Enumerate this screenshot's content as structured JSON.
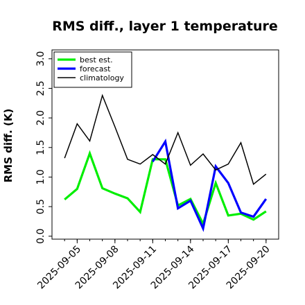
{
  "chart_data": {
    "type": "line",
    "title": "RMS diff., layer 1 temperature",
    "ylabel": "RMS diff. (K)",
    "xlabel": "",
    "x_dates": [
      "2025-09-04",
      "2025-09-05",
      "2025-09-06",
      "2025-09-07",
      "2025-09-08",
      "2025-09-09",
      "2025-09-10",
      "2025-09-11",
      "2025-09-12",
      "2025-09-13",
      "2025-09-14",
      "2025-09-15",
      "2025-09-16",
      "2025-09-17",
      "2025-09-18",
      "2025-09-19",
      "2025-09-20"
    ],
    "x_tick_labels": [
      {
        "date": "2025-09-05",
        "label": "2025-09-05",
        "color": "#000000"
      },
      {
        "date": "2025-09-08",
        "label": "2025-09-08",
        "color": "#000000"
      },
      {
        "date": "2025-09-11",
        "label": "2025-09-11",
        "color": "#2e8b2e"
      },
      {
        "date": "2025-09-14",
        "label": "2025-09-14",
        "color": "#000000"
      },
      {
        "date": "2025-09-17",
        "label": "2025-09-17",
        "color": "#000000"
      },
      {
        "date": "2025-09-20",
        "label": "2025-09-20",
        "color": "#000000"
      }
    ],
    "x_minor_tick_dates": [
      "2025-09-04",
      "2025-09-05",
      "2025-09-06",
      "2025-09-07",
      "2025-09-08",
      "2025-09-09",
      "2025-09-10",
      "2025-09-11",
      "2025-09-12",
      "2025-09-13",
      "2025-09-14",
      "2025-09-15",
      "2025-09-16",
      "2025-09-17",
      "2025-09-18",
      "2025-09-19",
      "2025-09-20"
    ],
    "xlim": [
      "2025-09-03",
      "2025-09-21"
    ],
    "ylim": [
      -0.05,
      3.15
    ],
    "y_ticks": [
      0.0,
      0.5,
      1.0,
      1.5,
      2.0,
      2.5,
      3.0
    ],
    "y_tick_labels": [
      "0.0",
      "0.5",
      "1.0",
      "1.5",
      "2.0",
      "2.5",
      "3.0"
    ],
    "grid": false,
    "legend_position": "top-left",
    "series": [
      {
        "name": "best est.",
        "color": "#00ee00",
        "points": [
          [
            "2025-09-04",
            0.62
          ],
          [
            "2025-09-05",
            0.8
          ],
          [
            "2025-09-06",
            1.4
          ],
          [
            "2025-09-07",
            0.81
          ],
          [
            "2025-09-08",
            0.72
          ],
          [
            "2025-09-09",
            0.64
          ],
          [
            "2025-09-10",
            0.41
          ],
          [
            "2025-09-11",
            1.3
          ],
          [
            "2025-09-12",
            1.3
          ],
          [
            "2025-09-13",
            0.52
          ],
          [
            "2025-09-14",
            0.63
          ],
          [
            "2025-09-15",
            0.21
          ],
          [
            "2025-09-16",
            0.9
          ],
          [
            "2025-09-17",
            0.35
          ],
          [
            "2025-09-18",
            0.38
          ],
          [
            "2025-09-19",
            0.28
          ],
          [
            "2025-09-20",
            0.42
          ]
        ]
      },
      {
        "name": "forecast",
        "color": "#0000ff",
        "points": [
          [
            "2025-09-11",
            1.26
          ],
          [
            "2025-09-12",
            1.6
          ],
          [
            "2025-09-13",
            0.47
          ],
          [
            "2025-09-14",
            0.6
          ],
          [
            "2025-09-15",
            0.13
          ],
          [
            "2025-09-16",
            1.18
          ],
          [
            "2025-09-17",
            0.9
          ],
          [
            "2025-09-18",
            0.4
          ],
          [
            "2025-09-19",
            0.33
          ],
          [
            "2025-09-20",
            0.63
          ]
        ]
      },
      {
        "name": "climatology",
        "color": "#000000",
        "points": [
          [
            "2025-09-04",
            1.32
          ],
          [
            "2025-09-05",
            1.9
          ],
          [
            "2025-09-06",
            1.61
          ],
          [
            "2025-09-07",
            2.38
          ],
          [
            "2025-09-08",
            1.85
          ],
          [
            "2025-09-09",
            1.3
          ],
          [
            "2025-09-10",
            1.22
          ],
          [
            "2025-09-11",
            1.38
          ],
          [
            "2025-09-12",
            1.22
          ],
          [
            "2025-09-13",
            1.75
          ],
          [
            "2025-09-14",
            1.2
          ],
          [
            "2025-09-15",
            1.39
          ],
          [
            "2025-09-16",
            1.12
          ],
          [
            "2025-09-17",
            1.22
          ],
          [
            "2025-09-18",
            1.58
          ],
          [
            "2025-09-19",
            0.88
          ],
          [
            "2025-09-20",
            1.05
          ]
        ]
      }
    ]
  }
}
